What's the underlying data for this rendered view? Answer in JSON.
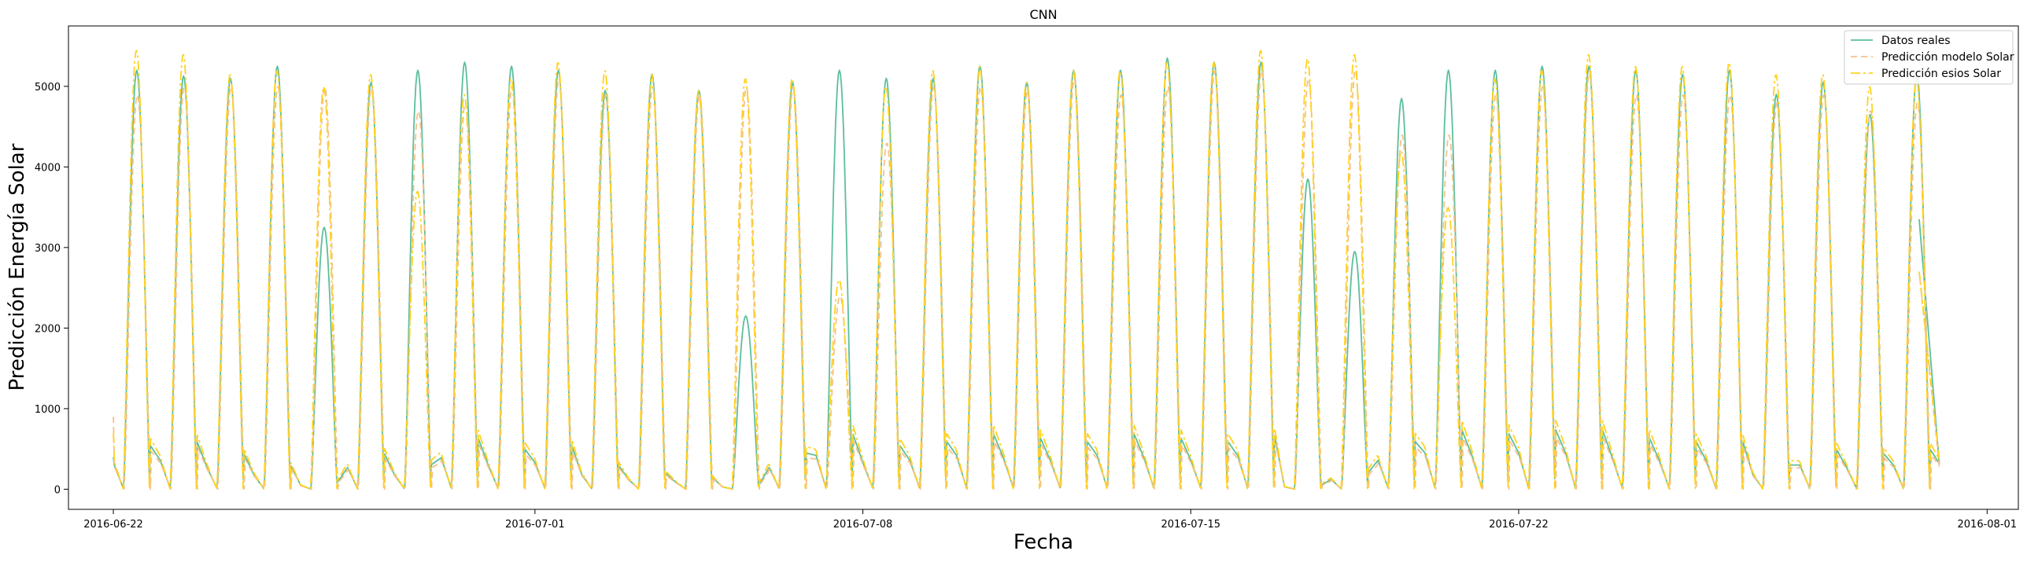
{
  "chart_data": {
    "type": "line",
    "title": "CNN",
    "xlabel": "Fecha",
    "ylabel": "Predicción Energía Solar",
    "x_ticks": [
      "2016-06-22",
      "2016-07-01",
      "2016-07-08",
      "2016-07-15",
      "2016-07-22",
      "2016-08-01"
    ],
    "y_ticks": [
      0,
      1000,
      2000,
      3000,
      4000,
      5000
    ],
    "xlim": [
      "2016-06-21 01:00",
      "2016-08-01 16:00"
    ],
    "ylim": [
      -250,
      5750
    ],
    "grid": false,
    "legend_position": "top-right",
    "x_start": "2016-06-22 00:00",
    "sampling": "daily cycle",
    "days": [
      {
        "date": "2016-06-22",
        "actual_peak": 5200,
        "model_peak": 4900,
        "esios_peak": 5450,
        "night": 550
      },
      {
        "date": "2016-06-23",
        "actual_peak": 5130,
        "model_peak": 5000,
        "esios_peak": 5400,
        "night": 600
      },
      {
        "date": "2016-06-24",
        "actual_peak": 5100,
        "model_peak": 5000,
        "esios_peak": 5150,
        "night": 450
      },
      {
        "date": "2016-06-25",
        "actual_peak": 5250,
        "model_peak": 5000,
        "esios_peak": 5200,
        "night": 300
      },
      {
        "date": "2016-06-26",
        "actual_peak": 3250,
        "model_peak": 5000,
        "esios_peak": 5000,
        "night": 80
      },
      {
        "date": "2016-06-27",
        "actual_peak": 5050,
        "model_peak": 5000,
        "esios_peak": 5150,
        "night": 450
      },
      {
        "date": "2016-06-28",
        "actual_peak": 5200,
        "model_peak": 4700,
        "esios_peak": 3700,
        "night": 300
      },
      {
        "date": "2016-06-29",
        "actual_peak": 5300,
        "model_peak": 4800,
        "esios_peak": 4900,
        "night": 650
      },
      {
        "date": "2016-06-30",
        "actual_peak": 5250,
        "model_peak": 5000,
        "esios_peak": 5100,
        "night": 500
      },
      {
        "date": "2016-07-01",
        "actual_peak": 5200,
        "model_peak": 5100,
        "esios_peak": 5300,
        "night": 550
      },
      {
        "date": "2016-07-02",
        "actual_peak": 4950,
        "model_peak": 4900,
        "esios_peak": 5200,
        "night": 300
      },
      {
        "date": "2016-07-03",
        "actual_peak": 5150,
        "model_peak": 5000,
        "esios_peak": 5150,
        "night": 200
      },
      {
        "date": "2016-07-04",
        "actual_peak": 4950,
        "model_peak": 4900,
        "esios_peak": 4950,
        "night": 150
      },
      {
        "date": "2016-07-05",
        "actual_peak": 2150,
        "model_peak": 5000,
        "esios_peak": 5100,
        "night": 50
      },
      {
        "date": "2016-07-06",
        "actual_peak": 5050,
        "model_peak": 5000,
        "esios_peak": 5100,
        "night": 450
      },
      {
        "date": "2016-07-07",
        "actual_peak": 5200,
        "model_peak": 2400,
        "esios_peak": 2600,
        "night": 700
      },
      {
        "date": "2016-07-08",
        "actual_peak": 5100,
        "model_peak": 4300,
        "esios_peak": 5000,
        "night": 550
      },
      {
        "date": "2016-07-09",
        "actual_peak": 5100,
        "model_peak": 5000,
        "esios_peak": 5200,
        "night": 600
      },
      {
        "date": "2016-07-10",
        "actual_peak": 5250,
        "model_peak": 5000,
        "esios_peak": 5250,
        "night": 700
      },
      {
        "date": "2016-07-11",
        "actual_peak": 5050,
        "model_peak": 4950,
        "esios_peak": 5050,
        "night": 650
      },
      {
        "date": "2016-07-12",
        "actual_peak": 5200,
        "model_peak": 5100,
        "esios_peak": 5200,
        "night": 600
      },
      {
        "date": "2016-07-13",
        "actual_peak": 5200,
        "model_peak": 4900,
        "esios_peak": 5200,
        "night": 700
      },
      {
        "date": "2016-07-14",
        "actual_peak": 5350,
        "model_peak": 5000,
        "esios_peak": 5300,
        "night": 650
      },
      {
        "date": "2016-07-15",
        "actual_peak": 5300,
        "model_peak": 5200,
        "esios_peak": 5300,
        "night": 600
      },
      {
        "date": "2016-07-16",
        "actual_peak": 5300,
        "model_peak": 5200,
        "esios_peak": 5450,
        "night": 700
      },
      {
        "date": "2016-07-17",
        "actual_peak": 3850,
        "model_peak": 5100,
        "esios_peak": 5350,
        "night": 50
      },
      {
        "date": "2016-07-18",
        "actual_peak": 2950,
        "model_peak": 5200,
        "esios_peak": 5400,
        "night": 200
      },
      {
        "date": "2016-07-19",
        "actual_peak": 4850,
        "model_peak": 4400,
        "esios_peak": 4200,
        "night": 600
      },
      {
        "date": "2016-07-20",
        "actual_peak": 5200,
        "model_peak": 4400,
        "esios_peak": 3500,
        "night": 750
      },
      {
        "date": "2016-07-21",
        "actual_peak": 5200,
        "model_peak": 4900,
        "esios_peak": 5100,
        "night": 700
      },
      {
        "date": "2016-07-22",
        "actual_peak": 5250,
        "model_peak": 5000,
        "esios_peak": 5200,
        "night": 750
      },
      {
        "date": "2016-07-23",
        "actual_peak": 5250,
        "model_peak": 5200,
        "esios_peak": 5400,
        "night": 750
      },
      {
        "date": "2016-07-24",
        "actual_peak": 5200,
        "model_peak": 4900,
        "esios_peak": 5250,
        "night": 650
      },
      {
        "date": "2016-07-25",
        "actual_peak": 5150,
        "model_peak": 4900,
        "esios_peak": 5250,
        "night": 600
      },
      {
        "date": "2016-07-26",
        "actual_peak": 5200,
        "model_peak": 4900,
        "esios_peak": 5300,
        "night": 600
      },
      {
        "date": "2016-07-27",
        "actual_peak": 4900,
        "model_peak": 4800,
        "esios_peak": 5150,
        "night": 300
      },
      {
        "date": "2016-07-28",
        "actual_peak": 5050,
        "model_peak": 4900,
        "esios_peak": 5150,
        "night": 500
      },
      {
        "date": "2016-07-29",
        "actual_peak": 4650,
        "model_peak": 4700,
        "esios_peak": 5000,
        "night": 450
      },
      {
        "date": "2016-07-30",
        "actual_peak": 5150,
        "model_peak": 4800,
        "esios_peak": 5100,
        "night": 500
      }
    ],
    "series": [
      {
        "name": "Datos reales",
        "color": "#5bbf9c",
        "style": "solid"
      },
      {
        "name": "Predicción modelo Solar",
        "color": "#f7c08a",
        "style": "dashed"
      },
      {
        "name": "Predicción esios Solar",
        "color": "#ffd21f",
        "style": "dashdot"
      }
    ]
  }
}
